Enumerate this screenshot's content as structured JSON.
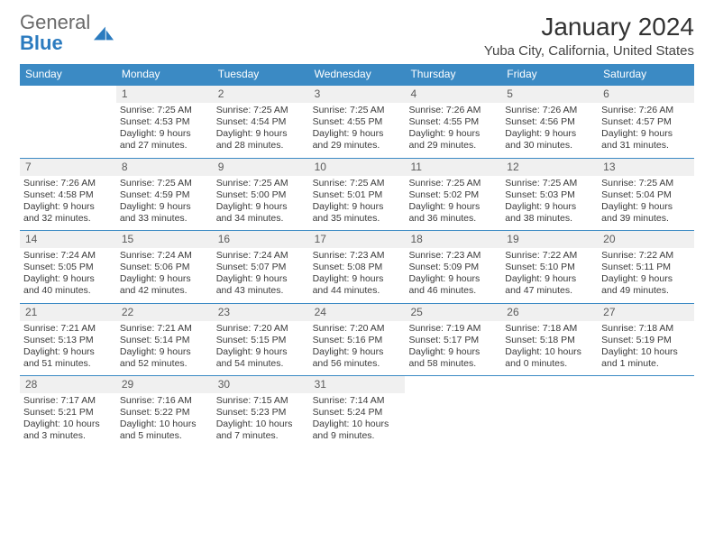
{
  "logo": {
    "part1": "General",
    "part2": "Blue"
  },
  "title": "January 2024",
  "location": "Yuba City, California, United States",
  "colors": {
    "brand_blue": "#3b8ac4",
    "logo_gray": "#6a6a6a",
    "row_gray": "#f0f0f0",
    "text": "#3a3a3a",
    "bg": "#ffffff"
  },
  "day_headers": [
    "Sunday",
    "Monday",
    "Tuesday",
    "Wednesday",
    "Thursday",
    "Friday",
    "Saturday"
  ],
  "weeks": [
    {
      "days": [
        {
          "num": "",
          "empty": true,
          "sunrise": "",
          "sunset": "",
          "daylight": ""
        },
        {
          "num": "1",
          "sunrise": "Sunrise: 7:25 AM",
          "sunset": "Sunset: 4:53 PM",
          "daylight": "Daylight: 9 hours and 27 minutes."
        },
        {
          "num": "2",
          "sunrise": "Sunrise: 7:25 AM",
          "sunset": "Sunset: 4:54 PM",
          "daylight": "Daylight: 9 hours and 28 minutes."
        },
        {
          "num": "3",
          "sunrise": "Sunrise: 7:25 AM",
          "sunset": "Sunset: 4:55 PM",
          "daylight": "Daylight: 9 hours and 29 minutes."
        },
        {
          "num": "4",
          "sunrise": "Sunrise: 7:26 AM",
          "sunset": "Sunset: 4:55 PM",
          "daylight": "Daylight: 9 hours and 29 minutes."
        },
        {
          "num": "5",
          "sunrise": "Sunrise: 7:26 AM",
          "sunset": "Sunset: 4:56 PM",
          "daylight": "Daylight: 9 hours and 30 minutes."
        },
        {
          "num": "6",
          "sunrise": "Sunrise: 7:26 AM",
          "sunset": "Sunset: 4:57 PM",
          "daylight": "Daylight: 9 hours and 31 minutes."
        }
      ]
    },
    {
      "days": [
        {
          "num": "7",
          "sunrise": "Sunrise: 7:26 AM",
          "sunset": "Sunset: 4:58 PM",
          "daylight": "Daylight: 9 hours and 32 minutes."
        },
        {
          "num": "8",
          "sunrise": "Sunrise: 7:25 AM",
          "sunset": "Sunset: 4:59 PM",
          "daylight": "Daylight: 9 hours and 33 minutes."
        },
        {
          "num": "9",
          "sunrise": "Sunrise: 7:25 AM",
          "sunset": "Sunset: 5:00 PM",
          "daylight": "Daylight: 9 hours and 34 minutes."
        },
        {
          "num": "10",
          "sunrise": "Sunrise: 7:25 AM",
          "sunset": "Sunset: 5:01 PM",
          "daylight": "Daylight: 9 hours and 35 minutes."
        },
        {
          "num": "11",
          "sunrise": "Sunrise: 7:25 AM",
          "sunset": "Sunset: 5:02 PM",
          "daylight": "Daylight: 9 hours and 36 minutes."
        },
        {
          "num": "12",
          "sunrise": "Sunrise: 7:25 AM",
          "sunset": "Sunset: 5:03 PM",
          "daylight": "Daylight: 9 hours and 38 minutes."
        },
        {
          "num": "13",
          "sunrise": "Sunrise: 7:25 AM",
          "sunset": "Sunset: 5:04 PM",
          "daylight": "Daylight: 9 hours and 39 minutes."
        }
      ]
    },
    {
      "days": [
        {
          "num": "14",
          "sunrise": "Sunrise: 7:24 AM",
          "sunset": "Sunset: 5:05 PM",
          "daylight": "Daylight: 9 hours and 40 minutes."
        },
        {
          "num": "15",
          "sunrise": "Sunrise: 7:24 AM",
          "sunset": "Sunset: 5:06 PM",
          "daylight": "Daylight: 9 hours and 42 minutes."
        },
        {
          "num": "16",
          "sunrise": "Sunrise: 7:24 AM",
          "sunset": "Sunset: 5:07 PM",
          "daylight": "Daylight: 9 hours and 43 minutes."
        },
        {
          "num": "17",
          "sunrise": "Sunrise: 7:23 AM",
          "sunset": "Sunset: 5:08 PM",
          "daylight": "Daylight: 9 hours and 44 minutes."
        },
        {
          "num": "18",
          "sunrise": "Sunrise: 7:23 AM",
          "sunset": "Sunset: 5:09 PM",
          "daylight": "Daylight: 9 hours and 46 minutes."
        },
        {
          "num": "19",
          "sunrise": "Sunrise: 7:22 AM",
          "sunset": "Sunset: 5:10 PM",
          "daylight": "Daylight: 9 hours and 47 minutes."
        },
        {
          "num": "20",
          "sunrise": "Sunrise: 7:22 AM",
          "sunset": "Sunset: 5:11 PM",
          "daylight": "Daylight: 9 hours and 49 minutes."
        }
      ]
    },
    {
      "days": [
        {
          "num": "21",
          "sunrise": "Sunrise: 7:21 AM",
          "sunset": "Sunset: 5:13 PM",
          "daylight": "Daylight: 9 hours and 51 minutes."
        },
        {
          "num": "22",
          "sunrise": "Sunrise: 7:21 AM",
          "sunset": "Sunset: 5:14 PM",
          "daylight": "Daylight: 9 hours and 52 minutes."
        },
        {
          "num": "23",
          "sunrise": "Sunrise: 7:20 AM",
          "sunset": "Sunset: 5:15 PM",
          "daylight": "Daylight: 9 hours and 54 minutes."
        },
        {
          "num": "24",
          "sunrise": "Sunrise: 7:20 AM",
          "sunset": "Sunset: 5:16 PM",
          "daylight": "Daylight: 9 hours and 56 minutes."
        },
        {
          "num": "25",
          "sunrise": "Sunrise: 7:19 AM",
          "sunset": "Sunset: 5:17 PM",
          "daylight": "Daylight: 9 hours and 58 minutes."
        },
        {
          "num": "26",
          "sunrise": "Sunrise: 7:18 AM",
          "sunset": "Sunset: 5:18 PM",
          "daylight": "Daylight: 10 hours and 0 minutes."
        },
        {
          "num": "27",
          "sunrise": "Sunrise: 7:18 AM",
          "sunset": "Sunset: 5:19 PM",
          "daylight": "Daylight: 10 hours and 1 minute."
        }
      ]
    },
    {
      "days": [
        {
          "num": "28",
          "sunrise": "Sunrise: 7:17 AM",
          "sunset": "Sunset: 5:21 PM",
          "daylight": "Daylight: 10 hours and 3 minutes."
        },
        {
          "num": "29",
          "sunrise": "Sunrise: 7:16 AM",
          "sunset": "Sunset: 5:22 PM",
          "daylight": "Daylight: 10 hours and 5 minutes."
        },
        {
          "num": "30",
          "sunrise": "Sunrise: 7:15 AM",
          "sunset": "Sunset: 5:23 PM",
          "daylight": "Daylight: 10 hours and 7 minutes."
        },
        {
          "num": "31",
          "sunrise": "Sunrise: 7:14 AM",
          "sunset": "Sunset: 5:24 PM",
          "daylight": "Daylight: 10 hours and 9 minutes."
        },
        {
          "num": "",
          "empty": true,
          "sunrise": "",
          "sunset": "",
          "daylight": ""
        },
        {
          "num": "",
          "empty": true,
          "sunrise": "",
          "sunset": "",
          "daylight": ""
        },
        {
          "num": "",
          "empty": true,
          "sunrise": "",
          "sunset": "",
          "daylight": ""
        }
      ]
    }
  ]
}
